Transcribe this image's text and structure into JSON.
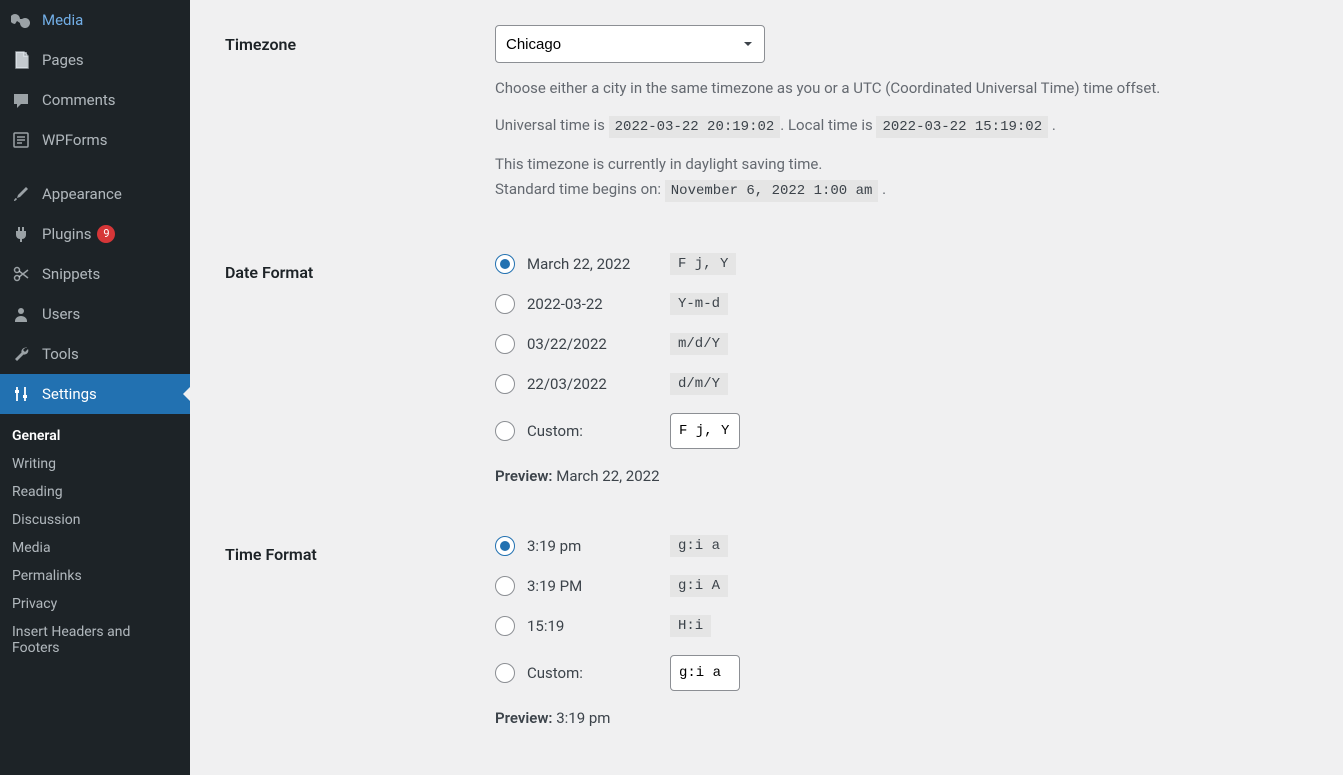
{
  "sidebar": {
    "menu": [
      {
        "icon": "media",
        "label": "Media"
      },
      {
        "icon": "page",
        "label": "Pages"
      },
      {
        "icon": "comment",
        "label": "Comments"
      },
      {
        "icon": "form",
        "label": "WPForms"
      }
    ],
    "menu2": [
      {
        "icon": "brush",
        "label": "Appearance"
      },
      {
        "icon": "plugin",
        "label": "Plugins",
        "badge": "9"
      },
      {
        "icon": "scissors",
        "label": "Snippets"
      },
      {
        "icon": "user",
        "label": "Users"
      },
      {
        "icon": "wrench",
        "label": "Tools"
      },
      {
        "icon": "settings",
        "label": "Settings",
        "current": true
      }
    ],
    "submenu": [
      {
        "label": "General",
        "current": true
      },
      {
        "label": "Writing"
      },
      {
        "label": "Reading"
      },
      {
        "label": "Discussion"
      },
      {
        "label": "Media"
      },
      {
        "label": "Permalinks"
      },
      {
        "label": "Privacy"
      },
      {
        "label": "Insert Headers and Footers"
      }
    ]
  },
  "timezone": {
    "label": "Timezone",
    "value": "Chicago",
    "help": "Choose either a city in the same timezone as you or a UTC (Coordinated Universal Time) time offset.",
    "utc_label": "Universal time is ",
    "utc_value": "2022-03-22 20:19:02",
    "local_label": ". Local time is ",
    "local_value": "2022-03-22 15:19:02",
    "period_after": " .",
    "dst_line": "This timezone is currently in daylight saving time.",
    "std_label": "Standard time begins on: ",
    "std_value": "November 6, 2022 1:00 am",
    "period_after2": " ."
  },
  "date_format": {
    "label": "Date Format",
    "options": [
      {
        "text": "March 22, 2022",
        "fmt": "F j, Y",
        "checked": true
      },
      {
        "text": "2022-03-22",
        "fmt": "Y-m-d"
      },
      {
        "text": "03/22/2022",
        "fmt": "m/d/Y"
      },
      {
        "text": "22/03/2022",
        "fmt": "d/m/Y"
      }
    ],
    "custom_label": "Custom:",
    "custom_value": "F j, Y",
    "preview_label": "Preview:",
    "preview_value": " March 22, 2022"
  },
  "time_format": {
    "label": "Time Format",
    "options": [
      {
        "text": "3:19 pm",
        "fmt": "g:i a",
        "checked": true
      },
      {
        "text": "3:19 PM",
        "fmt": "g:i A"
      },
      {
        "text": "15:19",
        "fmt": "H:i"
      }
    ],
    "custom_label": "Custom:",
    "custom_value": "g:i a",
    "preview_label": "Preview:",
    "preview_value": " 3:19 pm"
  }
}
